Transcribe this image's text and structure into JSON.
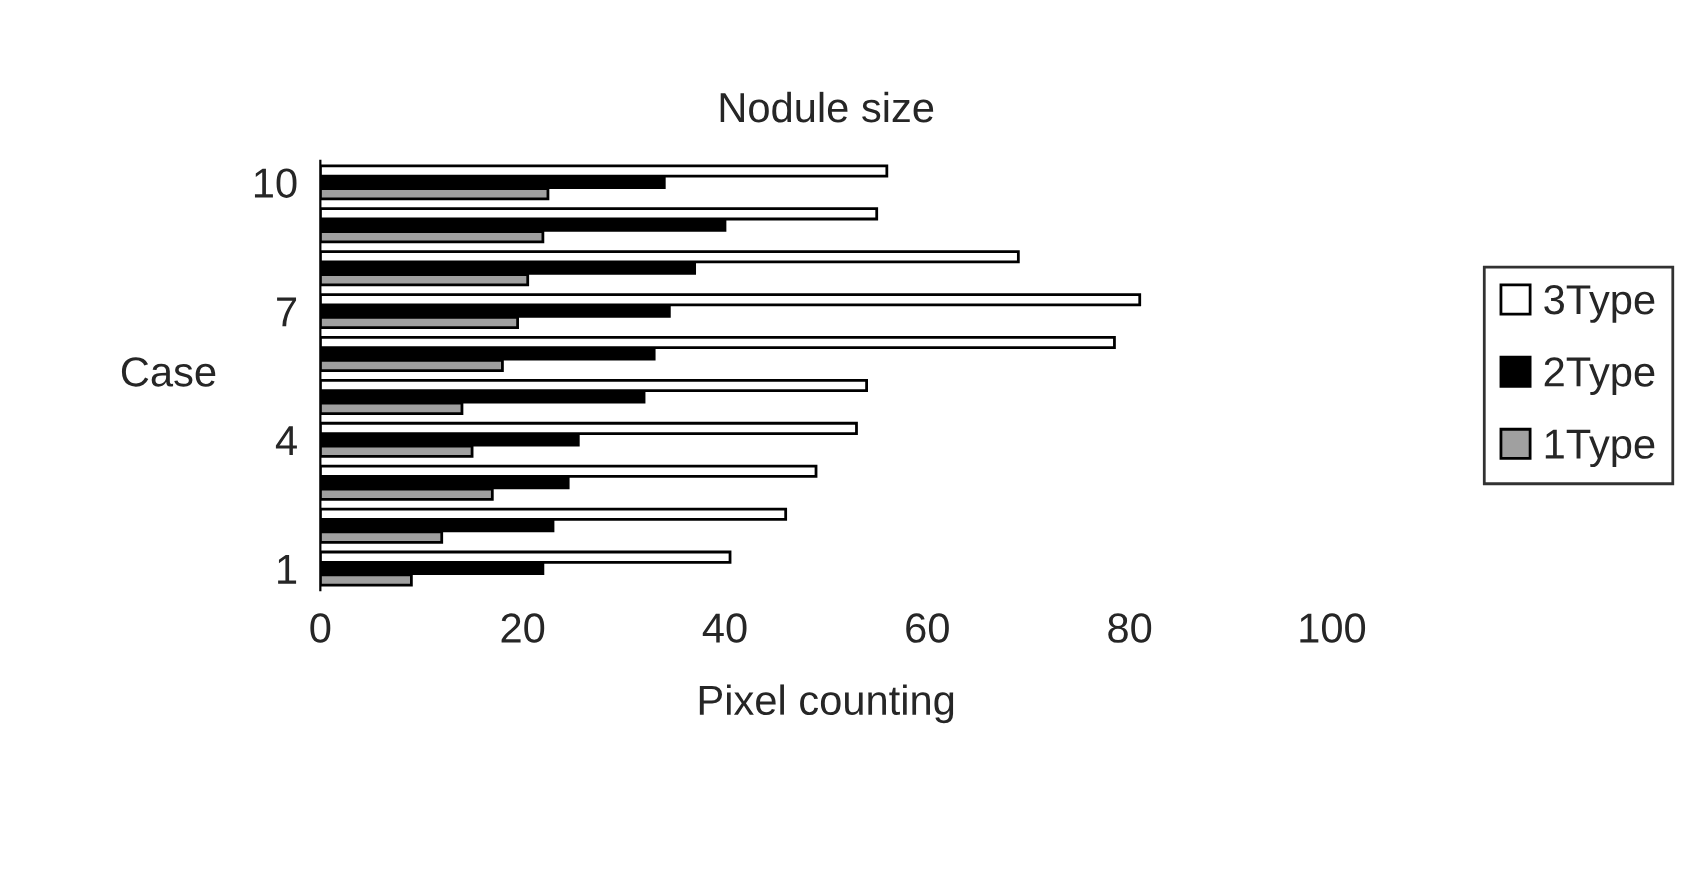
{
  "chart_data": {
    "type": "bar",
    "orientation": "horizontal",
    "title": "Nodule size",
    "xlabel": "Pixel counting",
    "ylabel": "Case",
    "categories": [
      "10",
      null,
      null,
      "7",
      null,
      null,
      "4",
      null,
      null,
      "1"
    ],
    "series": [
      {
        "name": "3Type",
        "color": "#ffffff",
        "values": [
          56,
          55,
          69,
          81,
          78.5,
          54,
          53,
          49,
          46,
          40.5
        ]
      },
      {
        "name": "2Type",
        "color": "#000000",
        "values": [
          34,
          40,
          37,
          34.5,
          33,
          32,
          25.5,
          24.5,
          23,
          22
        ]
      },
      {
        "name": "1Type",
        "color": "#a0a0a0",
        "values": [
          22.5,
          22,
          20.5,
          19.5,
          18,
          14,
          15,
          17,
          12,
          9
        ]
      }
    ],
    "xlim": [
      0,
      100
    ],
    "xticks": [
      0,
      20,
      40,
      60,
      80,
      100
    ],
    "grid": false,
    "legend": "right"
  }
}
